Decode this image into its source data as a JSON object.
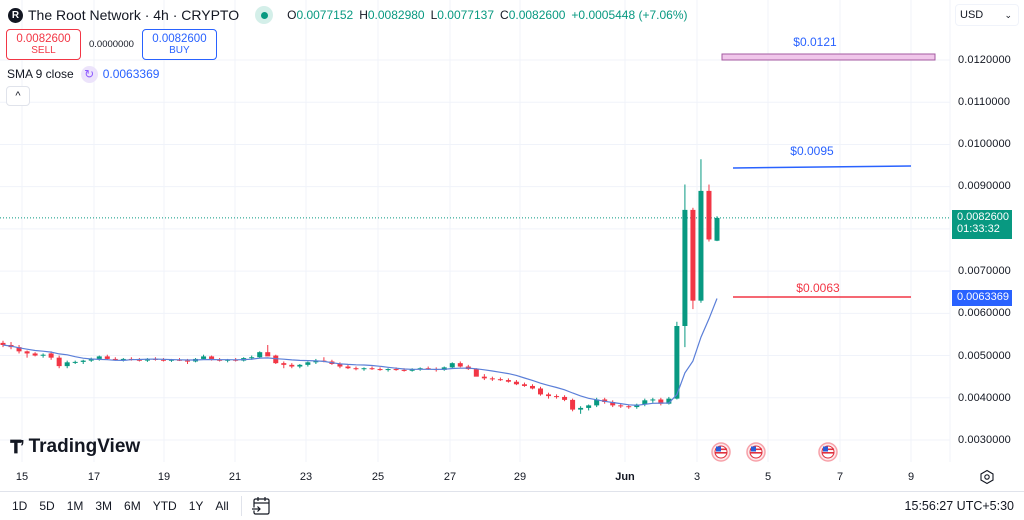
{
  "header": {
    "symbol_logo": "R",
    "symbol_title": "The Root Network · 4h · CRYPTO",
    "market_status_color": "#089981",
    "ohlc": {
      "o_label": "O",
      "o": "0.0077152",
      "h_label": "H",
      "h": "0.0082980",
      "l_label": "L",
      "l": "0.0077137",
      "c_label": "C",
      "c": "0.0082600",
      "change": "+0.0005448 (+7.06%)"
    }
  },
  "trade": {
    "sell_price": "0.0082600",
    "sell_label": "SELL",
    "spread": "0.0000000",
    "buy_price": "0.0082600",
    "buy_label": "BUY"
  },
  "indicator": {
    "label": "SMA 9 close",
    "icon": "refresh-icon",
    "value": "0.0063369"
  },
  "collapse_button": "^",
  "currency": {
    "selected": "USD"
  },
  "price_axis": {
    "labels": [
      "0.0120000",
      "0.0110000",
      "0.0100000",
      "0.0090000",
      "0.0070000",
      "0.0060000",
      "0.0050000",
      "0.0040000",
      "0.0030000"
    ],
    "last_price": "0.0082600",
    "countdown": "01:33:32",
    "sma_price": "0.0063369"
  },
  "time_axis": {
    "labels": [
      "15",
      "17",
      "19",
      "21",
      "23",
      "25",
      "27",
      "29",
      "Jun",
      "3",
      "5",
      "7",
      "9"
    ]
  },
  "drawings": [
    {
      "label": "$0.0121",
      "color": "#2962ff",
      "type": "rectangle"
    },
    {
      "label": "$0.0095",
      "color": "#2962ff",
      "type": "line"
    },
    {
      "label": "$0.0063",
      "color": "#f23645",
      "type": "line"
    }
  ],
  "branding": "TradingView",
  "range_buttons": [
    "1D",
    "5D",
    "1M",
    "3M",
    "6M",
    "YTD",
    "1Y",
    "All"
  ],
  "clock": "15:56:27 UTC+5:30",
  "colors": {
    "up": "#089981",
    "down": "#f23645",
    "sma": "#5b7fd8",
    "grid": "#f0f3fa"
  },
  "chart_data": {
    "type": "candlestick",
    "title": "The Root Network · 4h · CRYPTO",
    "xlabel": "",
    "ylabel": "USD",
    "ylim": [
      0.0026,
      0.0124
    ],
    "x_ticks": [
      "15",
      "17",
      "19",
      "21",
      "23",
      "25",
      "27",
      "29",
      "Jun",
      "3",
      "5",
      "7",
      "9"
    ],
    "y_ticks": [
      0.003,
      0.004,
      0.005,
      0.006,
      0.007,
      0.008,
      0.009,
      0.01,
      0.011,
      0.012
    ],
    "grid": true,
    "series": [
      {
        "name": "OHLC 4h",
        "note": "approximate OHLC read from pixels, ~6 candles per day, May 14 to Jun 3",
        "ohlc": [
          [
            0.0053,
            0.00535,
            0.0052,
            0.00525
          ],
          [
            0.00525,
            0.00532,
            0.00515,
            0.0052
          ],
          [
            0.0052,
            0.00525,
            0.00505,
            0.0051
          ],
          [
            0.0051,
            0.00512,
            0.00495,
            0.00505
          ],
          [
            0.00505,
            0.00508,
            0.00498,
            0.005
          ],
          [
            0.005,
            0.00505,
            0.00495,
            0.00502
          ],
          [
            0.00505,
            0.0051,
            0.0049,
            0.00495
          ],
          [
            0.00495,
            0.005,
            0.0047,
            0.00475
          ],
          [
            0.00475,
            0.00488,
            0.0047,
            0.00484
          ],
          [
            0.00484,
            0.00488,
            0.0048,
            0.00485
          ],
          [
            0.00485,
            0.0049,
            0.0048,
            0.00488
          ],
          [
            0.00488,
            0.00495,
            0.00485,
            0.00492
          ],
          [
            0.00492,
            0.005,
            0.00488,
            0.00498
          ],
          [
            0.00498,
            0.00502,
            0.0049,
            0.00492
          ],
          [
            0.00492,
            0.00496,
            0.00488,
            0.0049
          ],
          [
            0.0049,
            0.00494,
            0.00486,
            0.00492
          ],
          [
            0.00492,
            0.00496,
            0.00488,
            0.0049
          ],
          [
            0.0049,
            0.00494,
            0.00486,
            0.00488
          ],
          [
            0.00488,
            0.00494,
            0.00485,
            0.00492
          ],
          [
            0.00492,
            0.00496,
            0.00488,
            0.0049
          ],
          [
            0.0049,
            0.00494,
            0.00486,
            0.00489
          ],
          [
            0.00489,
            0.00492,
            0.00485,
            0.0049
          ],
          [
            0.0049,
            0.00494,
            0.00487,
            0.00488
          ],
          [
            0.00488,
            0.00492,
            0.0048,
            0.00486
          ],
          [
            0.00486,
            0.00494,
            0.00484,
            0.00492
          ],
          [
            0.00492,
            0.00502,
            0.0049,
            0.00498
          ],
          [
            0.00498,
            0.005,
            0.00488,
            0.0049
          ],
          [
            0.0049,
            0.00494,
            0.00486,
            0.00488
          ],
          [
            0.00488,
            0.00492,
            0.00484,
            0.0049
          ],
          [
            0.0049,
            0.00494,
            0.00486,
            0.00488
          ],
          [
            0.00488,
            0.00496,
            0.00486,
            0.00494
          ],
          [
            0.00494,
            0.005,
            0.0049,
            0.00496
          ],
          [
            0.00496,
            0.0051,
            0.00494,
            0.00508
          ],
          [
            0.00508,
            0.00525,
            0.00502,
            0.00498
          ],
          [
            0.005,
            0.00502,
            0.0048,
            0.00482
          ],
          [
            0.00482,
            0.00486,
            0.0047,
            0.00478
          ],
          [
            0.00478,
            0.00482,
            0.0047,
            0.00474
          ],
          [
            0.00474,
            0.0048,
            0.0047,
            0.00478
          ],
          [
            0.00478,
            0.00486,
            0.00474,
            0.00484
          ],
          [
            0.00484,
            0.00492,
            0.0048,
            0.00488
          ],
          [
            0.00488,
            0.00496,
            0.00484,
            0.00486
          ],
          [
            0.00486,
            0.0049,
            0.00478,
            0.0048
          ],
          [
            0.0048,
            0.00484,
            0.0047,
            0.00474
          ],
          [
            0.00474,
            0.00478,
            0.00468,
            0.0047
          ],
          [
            0.0047,
            0.00474,
            0.00465,
            0.00468
          ],
          [
            0.00468,
            0.00472,
            0.00464,
            0.0047
          ],
          [
            0.0047,
            0.00474,
            0.00466,
            0.00468
          ],
          [
            0.00468,
            0.00472,
            0.00464,
            0.00466
          ],
          [
            0.00466,
            0.0047,
            0.00462,
            0.00468
          ],
          [
            0.00468,
            0.00472,
            0.00464,
            0.00466
          ],
          [
            0.00466,
            0.0047,
            0.00462,
            0.00464
          ],
          [
            0.00464,
            0.0047,
            0.00462,
            0.00468
          ],
          [
            0.00468,
            0.00472,
            0.00464,
            0.0047
          ],
          [
            0.0047,
            0.00474,
            0.00466,
            0.00468
          ],
          [
            0.00468,
            0.00472,
            0.00462,
            0.00466
          ],
          [
            0.00466,
            0.00474,
            0.00464,
            0.00472
          ],
          [
            0.00472,
            0.00484,
            0.0047,
            0.00482
          ],
          [
            0.00482,
            0.00486,
            0.00472,
            0.00474
          ],
          [
            0.00474,
            0.00478,
            0.00466,
            0.00468
          ],
          [
            0.00468,
            0.0047,
            0.00456,
            0.0045
          ],
          [
            0.0045,
            0.00456,
            0.00442,
            0.00446
          ],
          [
            0.00446,
            0.0045,
            0.0044,
            0.00444
          ],
          [
            0.00444,
            0.00448,
            0.0044,
            0.00442
          ],
          [
            0.00442,
            0.00446,
            0.00436,
            0.00438
          ],
          [
            0.00438,
            0.00442,
            0.0043,
            0.00432
          ],
          [
            0.00432,
            0.00436,
            0.00426,
            0.00428
          ],
          [
            0.00428,
            0.00432,
            0.0042,
            0.00422
          ],
          [
            0.00422,
            0.00426,
            0.00405,
            0.00408
          ],
          [
            0.00408,
            0.00412,
            0.00398,
            0.00404
          ],
          [
            0.00404,
            0.00408,
            0.00398,
            0.00402
          ],
          [
            0.00402,
            0.00406,
            0.00392,
            0.00395
          ],
          [
            0.00395,
            0.00398,
            0.00368,
            0.00372
          ],
          [
            0.00372,
            0.0038,
            0.00362,
            0.00376
          ],
          [
            0.00376,
            0.00384,
            0.0037,
            0.00382
          ],
          [
            0.00382,
            0.004,
            0.00378,
            0.00396
          ],
          [
            0.00396,
            0.004,
            0.00386,
            0.0039
          ],
          [
            0.0039,
            0.00394,
            0.00378,
            0.00382
          ],
          [
            0.00382,
            0.00386,
            0.00376,
            0.0038
          ],
          [
            0.0038,
            0.00384,
            0.00374,
            0.00378
          ],
          [
            0.00378,
            0.00386,
            0.00374,
            0.00384
          ],
          [
            0.00384,
            0.00398,
            0.0038,
            0.00394
          ],
          [
            0.00394,
            0.004,
            0.00388,
            0.00396
          ],
          [
            0.00396,
            0.004,
            0.00382,
            0.00386
          ],
          [
            0.00386,
            0.00402,
            0.00384,
            0.00398
          ],
          [
            0.00398,
            0.0058,
            0.00396,
            0.0057
          ],
          [
            0.0057,
            0.00905,
            0.0052,
            0.00845
          ],
          [
            0.00845,
            0.0085,
            0.0061,
            0.0063
          ],
          [
            0.0063,
            0.00965,
            0.00625,
            0.0089
          ],
          [
            0.0089,
            0.00905,
            0.0077,
            0.00775
          ],
          [
            0.00772,
            0.0083,
            0.00771,
            0.00826
          ]
        ]
      },
      {
        "name": "SMA 9 close",
        "last_value": 0.0063369
      }
    ],
    "annotations": [
      {
        "text": "$0.0121",
        "price": 0.0121,
        "kind": "rectangle"
      },
      {
        "text": "$0.0095",
        "price": 0.0095,
        "kind": "trendline"
      },
      {
        "text": "$0.0063",
        "price": 0.0063,
        "kind": "horizontal-line"
      },
      {
        "text": "US economic events",
        "kind": "event-markers",
        "dates": [
          "Jun 4",
          "Jun 5",
          "Jun 7"
        ]
      }
    ]
  }
}
